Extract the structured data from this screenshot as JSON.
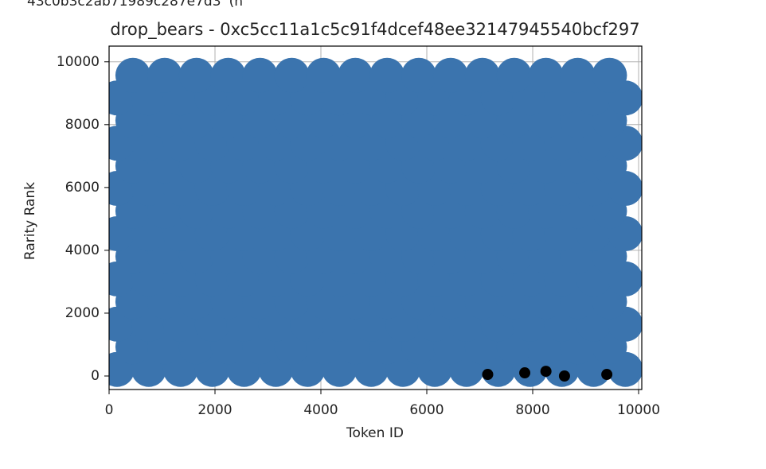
{
  "header_fragment": "43c0b3c2ab71989c287e7d3' (n",
  "chart_data": {
    "type": "scatter",
    "title": "drop_bears - 0xc5cc11a1c5c91f4dcef48ee32147945540bcf297",
    "x_label": "Token ID",
    "y_label": "Rarity Rank",
    "xlim": [
      0,
      10060
    ],
    "ylim": [
      -430,
      10500
    ],
    "xticks": [
      0,
      2000,
      4000,
      6000,
      8000,
      10000
    ],
    "yticks": [
      0,
      2000,
      4000,
      6000,
      8000,
      10000
    ],
    "grid": true,
    "series": [
      {
        "color": "#3b74ae",
        "x": [
          150,
          750,
          1350,
          1950,
          2550,
          3150,
          3750,
          4350,
          4950,
          5550,
          6150,
          6750,
          7350,
          7950,
          8550,
          9150,
          9750,
          450,
          1050,
          1650,
          2250,
          2850,
          3450,
          4050,
          4650,
          5250,
          5850,
          6450,
          7050,
          7650,
          8250,
          8850,
          9450,
          150,
          750,
          1350,
          1950,
          2550,
          3150,
          3750,
          4350,
          4950,
          5550,
          6150,
          6750,
          7350,
          7950,
          8550,
          9150,
          9750,
          450,
          1050,
          1650,
          2250,
          2850,
          3450,
          4050,
          4650,
          5250,
          5850,
          6450,
          7050,
          7650,
          8250,
          8850,
          9450,
          150,
          750,
          1350,
          1950,
          2550,
          3150,
          3750,
          4350,
          4950,
          5550,
          6150,
          6750,
          7350,
          7950,
          8550,
          9150,
          9750,
          450,
          1050,
          1650,
          2250,
          2850,
          3450,
          4050,
          4650,
          5250,
          5850,
          6450,
          7050,
          7650,
          8250,
          8850,
          9450,
          150,
          750,
          1350,
          1950,
          2550,
          3150,
          3750,
          4350,
          4950,
          5550,
          6150,
          6750,
          7350,
          7950,
          8550,
          9150,
          9750,
          450,
          1050,
          1650,
          2250,
          2850,
          3450,
          4050,
          4650,
          5250,
          5850,
          6450,
          7050,
          7650,
          8250,
          8850,
          9450,
          150,
          750,
          1350,
          1950,
          2550,
          3150,
          3750,
          4350,
          4950,
          5550,
          6150,
          6750,
          7350,
          7950,
          8550,
          9150,
          9750,
          450,
          1050,
          1650,
          2250,
          2850,
          3450,
          4050,
          4650,
          5250,
          5850,
          6450,
          7050,
          7650,
          8250,
          8850,
          9450,
          150,
          750,
          1350,
          1950,
          2550,
          3150,
          3750,
          4350,
          4950,
          5550,
          6150,
          6750,
          7350,
          7950,
          8550,
          9150,
          9750,
          450,
          1050,
          1650,
          2250,
          2850,
          3450,
          4050,
          4650,
          5250,
          5850,
          6450,
          7050,
          7650,
          8250,
          8850,
          9450,
          150,
          750,
          1350,
          1950,
          2550,
          3150,
          3750,
          4350,
          4950,
          5550,
          6150,
          6750,
          7350,
          7950,
          8550,
          9150,
          9750,
          450,
          1050,
          1650,
          2250,
          2850,
          3450,
          4050,
          4650,
          5250,
          5850,
          6450,
          7050,
          7650,
          8250,
          8850,
          9450
        ],
        "y": [
          210,
          210,
          210,
          210,
          210,
          210,
          210,
          210,
          210,
          210,
          210,
          210,
          210,
          210,
          210,
          210,
          210,
          930,
          930,
          930,
          930,
          930,
          930,
          930,
          930,
          930,
          930,
          930,
          930,
          930,
          930,
          930,
          930,
          1650,
          1650,
          1650,
          1650,
          1650,
          1650,
          1650,
          1650,
          1650,
          1650,
          1650,
          1650,
          1650,
          1650,
          1650,
          1650,
          1650,
          2370,
          2370,
          2370,
          2370,
          2370,
          2370,
          2370,
          2370,
          2370,
          2370,
          2370,
          2370,
          2370,
          2370,
          2370,
          2370,
          3090,
          3090,
          3090,
          3090,
          3090,
          3090,
          3090,
          3090,
          3090,
          3090,
          3090,
          3090,
          3090,
          3090,
          3090,
          3090,
          3090,
          3810,
          3810,
          3810,
          3810,
          3810,
          3810,
          3810,
          3810,
          3810,
          3810,
          3810,
          3810,
          3810,
          3810,
          3810,
          3810,
          4530,
          4530,
          4530,
          4530,
          4530,
          4530,
          4530,
          4530,
          4530,
          4530,
          4530,
          4530,
          4530,
          4530,
          4530,
          4530,
          4530,
          5250,
          5250,
          5250,
          5250,
          5250,
          5250,
          5250,
          5250,
          5250,
          5250,
          5250,
          5250,
          5250,
          5250,
          5250,
          5250,
          5970,
          5970,
          5970,
          5970,
          5970,
          5970,
          5970,
          5970,
          5970,
          5970,
          5970,
          5970,
          5970,
          5970,
          5970,
          5970,
          5970,
          6690,
          6690,
          6690,
          6690,
          6690,
          6690,
          6690,
          6690,
          6690,
          6690,
          6690,
          6690,
          6690,
          6690,
          6690,
          6690,
          7410,
          7410,
          7410,
          7410,
          7410,
          7410,
          7410,
          7410,
          7410,
          7410,
          7410,
          7410,
          7410,
          7410,
          7410,
          7410,
          7410,
          8130,
          8130,
          8130,
          8130,
          8130,
          8130,
          8130,
          8130,
          8130,
          8130,
          8130,
          8130,
          8130,
          8130,
          8130,
          8130,
          8850,
          8850,
          8850,
          8850,
          8850,
          8850,
          8850,
          8850,
          8850,
          8850,
          8850,
          8850,
          8850,
          8850,
          8850,
          8850,
          8850,
          9570,
          9570,
          9570,
          9570,
          9570,
          9570,
          9570,
          9570,
          9570,
          9570,
          9570,
          9570,
          9570,
          9570,
          9570,
          9570
        ]
      },
      {
        "color": "#000000",
        "x": [
          7150,
          7850,
          8250,
          8600,
          9400
        ],
        "y": [
          50,
          100,
          150,
          0,
          50
        ]
      }
    ]
  }
}
